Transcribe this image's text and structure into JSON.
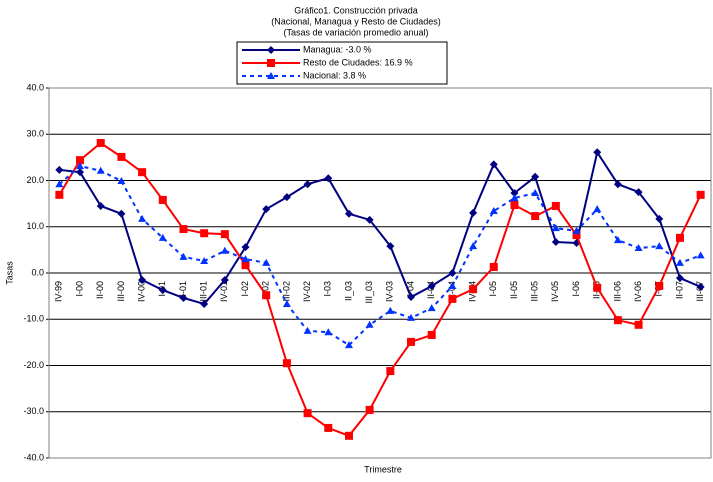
{
  "chart_data": {
    "type": "line",
    "title": "Gráfico1.  Construcción privada",
    "subtitle": [
      "(Nacional, Managua y Resto de Ciudades)",
      "(Tasas de variación promedio anual)"
    ],
    "xlabel": "Trimestre",
    "ylabel": "Tasas",
    "categories": [
      "IV-99",
      "I-00",
      "II-00",
      "III-00",
      "IV-00",
      "I-01",
      "II-01",
      "III-01",
      "IV-01",
      "I-02",
      "II-02",
      "III-02",
      "IV-02",
      "I-03",
      "II_03",
      "III_03",
      "IV-03",
      "I-04",
      "II-04",
      "III-04",
      "IV-04",
      "I-05",
      "II-05",
      "III-05",
      "IV-05",
      "I-06",
      "II-06",
      "III-06",
      "IV-06",
      "I-07",
      "II-07",
      "III-07"
    ],
    "series": [
      {
        "name": "Managua: -3.0 %",
        "color": "#000080",
        "marker": "diamond",
        "dash": false,
        "values": [
          22.3,
          21.8,
          14.5,
          12.8,
          -1.5,
          -3.7,
          -5.4,
          -6.7,
          -1.5,
          5.6,
          13.8,
          16.4,
          19.2,
          20.5,
          12.8,
          11.5,
          5.8,
          -5.2,
          -2.8,
          0,
          13,
          23.5,
          17.3,
          20.8,
          6.7,
          6.5,
          26.1,
          19.2,
          17.5,
          11.7,
          -1.1,
          -3.0
        ]
      },
      {
        "name": "Resto de Ciudades: 16.9 %",
        "color": "#ff0000",
        "marker": "square",
        "dash": false,
        "values": [
          16.9,
          24.4,
          28.1,
          25.1,
          21.8,
          15.8,
          9.5,
          8.6,
          8.4,
          1.7,
          -4.8,
          -19.5,
          -30.3,
          -33.5,
          -35.2,
          -29.6,
          -21.2,
          -14.9,
          -13.4,
          -5.6,
          -3.5,
          1.3,
          14.7,
          12.3,
          14.5,
          8.2,
          -3.2,
          -10.2,
          -11.2,
          -2.8,
          7.6,
          16.9
        ]
      },
      {
        "name": "Nacional: 3.8 %",
        "color": "#0033ff",
        "marker": "triangle",
        "dash": true,
        "values": [
          19.2,
          23.1,
          22.1,
          19.9,
          11.7,
          7.6,
          3.5,
          2.6,
          4.8,
          3.0,
          2.2,
          -6.7,
          -12.5,
          -12.8,
          -15.6,
          -11.2,
          -8.2,
          -9.7,
          -7.6,
          -2.8,
          5.8,
          13.4,
          16.2,
          17.3,
          9.7,
          9.1,
          13.8,
          7.1,
          5.4,
          5.8,
          2.2,
          3.8
        ]
      }
    ],
    "ylim": [
      -40,
      40
    ],
    "yticks": [
      {
        "value": -40,
        "label": "-40.0"
      },
      {
        "value": -30,
        "label": "-30.0"
      },
      {
        "value": -20,
        "label": "-20.0"
      },
      {
        "value": -10,
        "label": "-10.0"
      },
      {
        "value": 0,
        "label": "0.0"
      },
      {
        "value": 10,
        "label": "10.0"
      },
      {
        "value": 20,
        "label": "20.0"
      },
      {
        "value": 30,
        "label": "30.0"
      },
      {
        "value": 40,
        "label": "40.0"
      }
    ],
    "grid": true
  }
}
